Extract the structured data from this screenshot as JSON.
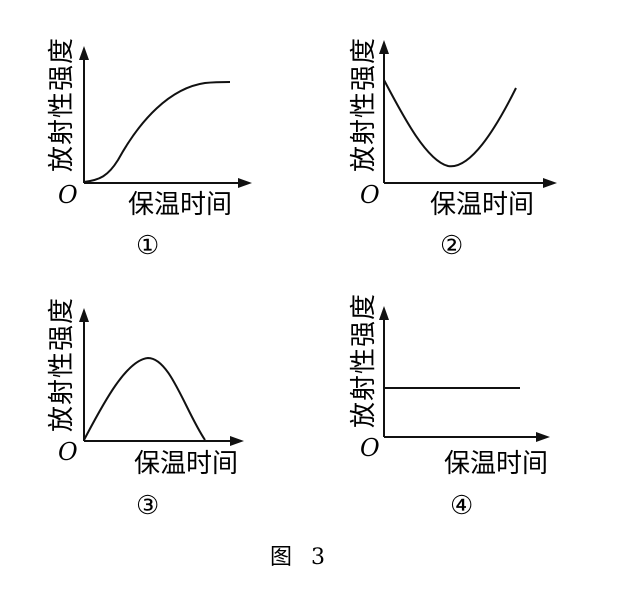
{
  "panels": [
    {
      "id": "1",
      "ylabel": "放射性强度",
      "xlabel": "保温时间",
      "origin": "O",
      "number": "①",
      "curve": "sigmoid-rise"
    },
    {
      "id": "2",
      "ylabel": "放射性强度",
      "xlabel": "保温时间",
      "origin": "O",
      "number": "②",
      "curve": "u-shape"
    },
    {
      "id": "3",
      "ylabel": "放射性强度",
      "xlabel": "保温时间",
      "origin": "O",
      "number": "③",
      "curve": "hump"
    },
    {
      "id": "4",
      "ylabel": "放射性强度",
      "xlabel": "保温时间",
      "origin": "O",
      "number": "④",
      "curve": "constant"
    }
  ],
  "caption": "图 3"
}
